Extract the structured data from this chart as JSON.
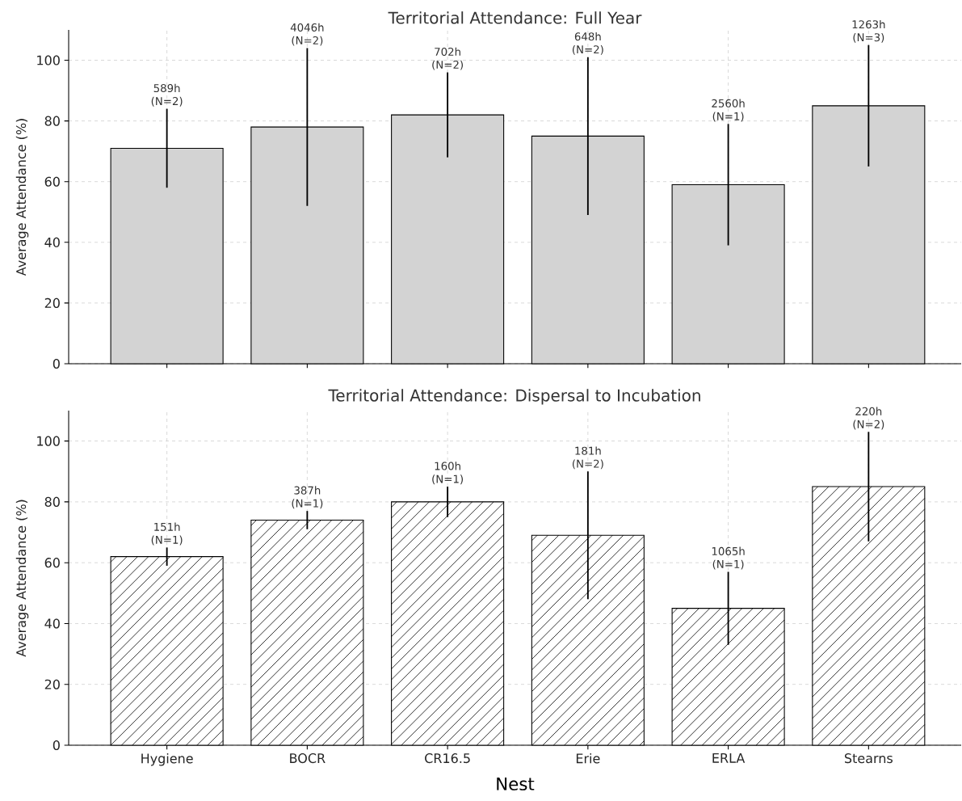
{
  "chart_data": [
    {
      "type": "bar",
      "title": "Territorial Attendance: Full Year",
      "ylabel": "Average Attendance (%)",
      "categories": [
        "Hygiene",
        "BOCR",
        "CR16.5",
        "Erie",
        "ERLA",
        "Stearns"
      ],
      "values": [
        71,
        78,
        82,
        75,
        59,
        85
      ],
      "errors": [
        13,
        26,
        14,
        26,
        20,
        20
      ],
      "color": "#d3d3d3",
      "ylim": [
        0,
        110
      ],
      "yticks": [
        0,
        20,
        40,
        60,
        80,
        100
      ],
      "grid": true,
      "tick_labels": "y",
      "annotations": [
        {
          "text": "589h (N=2)",
          "x": "Hygiene",
          "y": 84
        },
        {
          "text": "4046h (N=2)",
          "x": "BOCR",
          "y": 104
        },
        {
          "text": "702h (N=2)",
          "x": "CR16.5",
          "y": 96
        },
        {
          "text": "648h (N=2)",
          "x": "Erie",
          "y": 101
        },
        {
          "text": "2560h (N=1)",
          "x": "ERLA",
          "y": 79
        },
        {
          "text": "1263h (N=3)",
          "x": "Stearns",
          "y": 105
        }
      ]
    },
    {
      "type": "bar",
      "title": "Territorial Attendance: Dispersal to Incubation",
      "xlabel": "Nest",
      "ylabel": "Average Attendance (%)",
      "categories": [
        "Hygiene",
        "BOCR",
        "CR16.5",
        "Erie",
        "ERLA",
        "Stearns"
      ],
      "values": [
        62,
        74,
        80,
        69,
        45,
        85
      ],
      "errors": [
        3,
        3,
        5,
        21,
        12,
        18
      ],
      "color": "#ffffff",
      "ylim": [
        0,
        110
      ],
      "yticks": [
        0,
        20,
        40,
        60,
        80,
        100
      ],
      "grid": true,
      "annotations": [
        {
          "text": "151h (N=1)",
          "x": "Hygiene",
          "y": 65
        },
        {
          "text": "387h (N=1)",
          "x": "BOCR",
          "y": 77
        },
        {
          "text": "160h (N=1)",
          "x": "CR16.5",
          "y": 85
        },
        {
          "text": "181h (N=2)",
          "x": "Erie",
          "y": 90
        },
        {
          "text": "1065h (N=1)",
          "x": "ERLA",
          "y": 57
        },
        {
          "text": "220h (N=2)",
          "x": "Stearns",
          "y": 103
        }
      ]
    }
  ]
}
